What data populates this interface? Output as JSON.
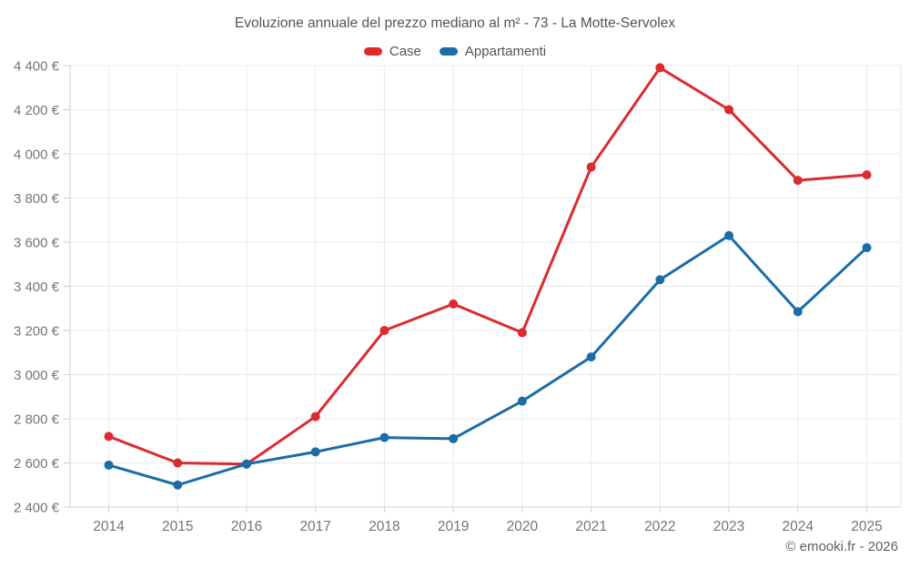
{
  "title": "Evoluzione annuale del prezzo mediano al m² - 73 - La Motte-Servolex",
  "footer": "© emooki.fr - 2026",
  "colors": {
    "case_red": "#dc2a2e",
    "appartamenti_blue": "#1a6da6",
    "grid": "#e9e9e9",
    "axis": "#cfcfcf",
    "tick_text": "#757575",
    "title_text": "#545454"
  },
  "chart_data": {
    "type": "line",
    "title": "Evoluzione annuale del prezzo mediano al m² - 73 - La Motte-Servolex",
    "categories": [
      "2014",
      "2015",
      "2016",
      "2017",
      "2018",
      "2019",
      "2020",
      "2021",
      "2022",
      "2023",
      "2024",
      "2025"
    ],
    "series": [
      {
        "name": "Case",
        "color": "#dc2a2e",
        "values": [
          2720,
          2600,
          2595,
          2810,
          3200,
          3320,
          3190,
          3940,
          4390,
          4200,
          3880,
          3905
        ]
      },
      {
        "name": "Appartamenti",
        "color": "#1a6da6",
        "values": [
          2590,
          2500,
          2595,
          2650,
          2715,
          2710,
          2880,
          3080,
          3430,
          3630,
          3285,
          3575
        ]
      }
    ],
    "xlabel": "",
    "ylabel": "",
    "ylim": [
      2400,
      4400
    ],
    "y_tick_step": 200,
    "y_tick_labels": [
      "2 400 €",
      "2 600 €",
      "2 800 €",
      "3 000 €",
      "3 200 €",
      "3 400 €",
      "3 600 €",
      "3 800 €",
      "4 000 €",
      "4 200 €",
      "4 400 €"
    ],
    "grid": true,
    "legend_position": "top"
  }
}
